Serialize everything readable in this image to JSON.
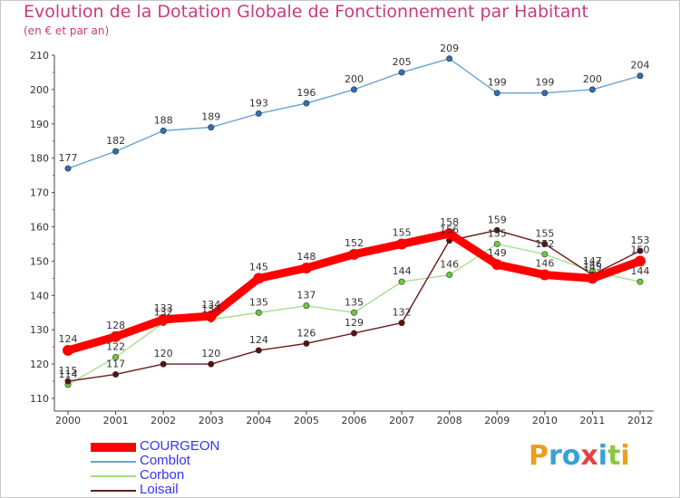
{
  "title": "Evolution de la Dotation Globale de Fonctionnement par Habitant",
  "subtitle": "(en € et par an)",
  "logo": [
    "P",
    "r",
    "o",
    "x",
    "i",
    "t",
    "i"
  ],
  "legend": [
    {
      "name": "COURGEON",
      "color": "#ff0000"
    },
    {
      "name": "Comblot",
      "color": "#6aa3d4"
    },
    {
      "name": "Corbon",
      "color": "#9ee07a"
    },
    {
      "name": "Loisail",
      "color": "#6b1a1a"
    }
  ],
  "chart_data": {
    "type": "line",
    "title": "Evolution de la Dotation Globale de Fonctionnement par Habitant",
    "x": [
      "2000",
      "2001",
      "2002",
      "2003",
      "2004",
      "2005",
      "2006",
      "2007",
      "2008",
      "2009",
      "2010",
      "2011",
      "2012"
    ],
    "ylim": [
      110,
      210
    ],
    "yticks": [
      110,
      120,
      130,
      140,
      150,
      160,
      170,
      180,
      190,
      200,
      210
    ],
    "grid": false,
    "legend_position": "bottom-left",
    "series": [
      {
        "name": "COURGEON",
        "color": "#ff0000",
        "marker": "#ff0000",
        "values": [
          124,
          128,
          133,
          134,
          145,
          148,
          152,
          155,
          158,
          149,
          146,
          145,
          150
        ]
      },
      {
        "name": "Comblot",
        "color": "#6aa3d4",
        "marker": "#2f6fb0",
        "values": [
          177,
          182,
          188,
          189,
          193,
          196,
          200,
          205,
          209,
          199,
          199,
          200,
          204
        ]
      },
      {
        "name": "Corbon",
        "color": "#a8e090",
        "marker": "#6cc840",
        "values": [
          114,
          122,
          132,
          133,
          135,
          137,
          135,
          144,
          146,
          155,
          152,
          147,
          144
        ]
      },
      {
        "name": "Loisail",
        "color": "#6b1a1a",
        "marker": "#5a1010",
        "values": [
          115,
          117,
          120,
          120,
          124,
          126,
          129,
          132,
          156,
          159,
          155,
          146,
          153
        ]
      }
    ]
  }
}
